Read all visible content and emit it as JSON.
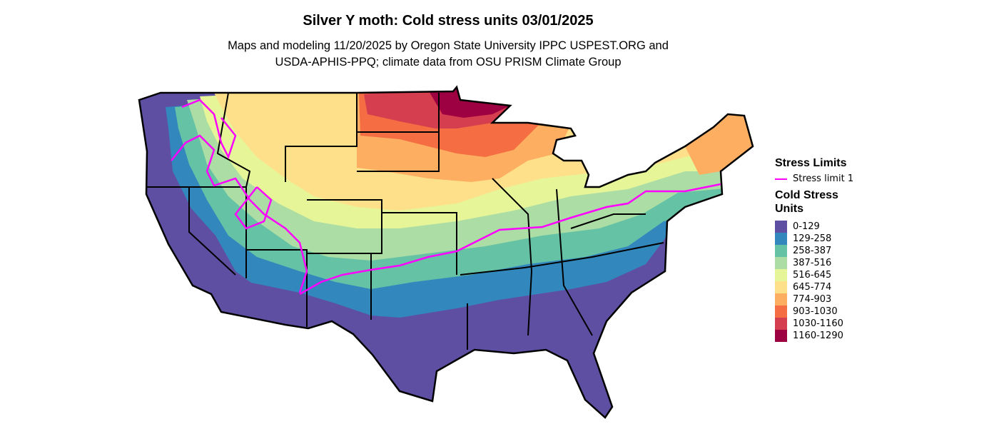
{
  "title": "Silver Y moth: Cold stress units 03/01/2025",
  "subtitle_line1": "Maps and modeling 11/20/2025 by Oregon State University IPPC USPEST.ORG and",
  "subtitle_line2": "USDA-APHIS-PPQ; climate data from OSU PRISM Climate Group",
  "legend": {
    "stress_title": "Stress Limits",
    "stress_items": [
      {
        "label": "Stress limit 1",
        "color": "#FF00FF"
      }
    ],
    "units_title_line1": "Cold Stress",
    "units_title_line2": "Units",
    "classes": [
      {
        "label": "0-129",
        "color": "#5E4FA2"
      },
      {
        "label": "129-258",
        "color": "#3288BD"
      },
      {
        "label": "258-387",
        "color": "#66C2A5"
      },
      {
        "label": "387-516",
        "color": "#ABDDA4"
      },
      {
        "label": "516-645",
        "color": "#E6F598"
      },
      {
        "label": "645-774",
        "color": "#FEE08B"
      },
      {
        "label": "774-903",
        "color": "#FDAE61"
      },
      {
        "label": "903-1030",
        "color": "#F46D43"
      },
      {
        "label": "1030-1160",
        "color": "#D53E4F"
      },
      {
        "label": "1160-1290",
        "color": "#9E0142"
      }
    ]
  }
}
